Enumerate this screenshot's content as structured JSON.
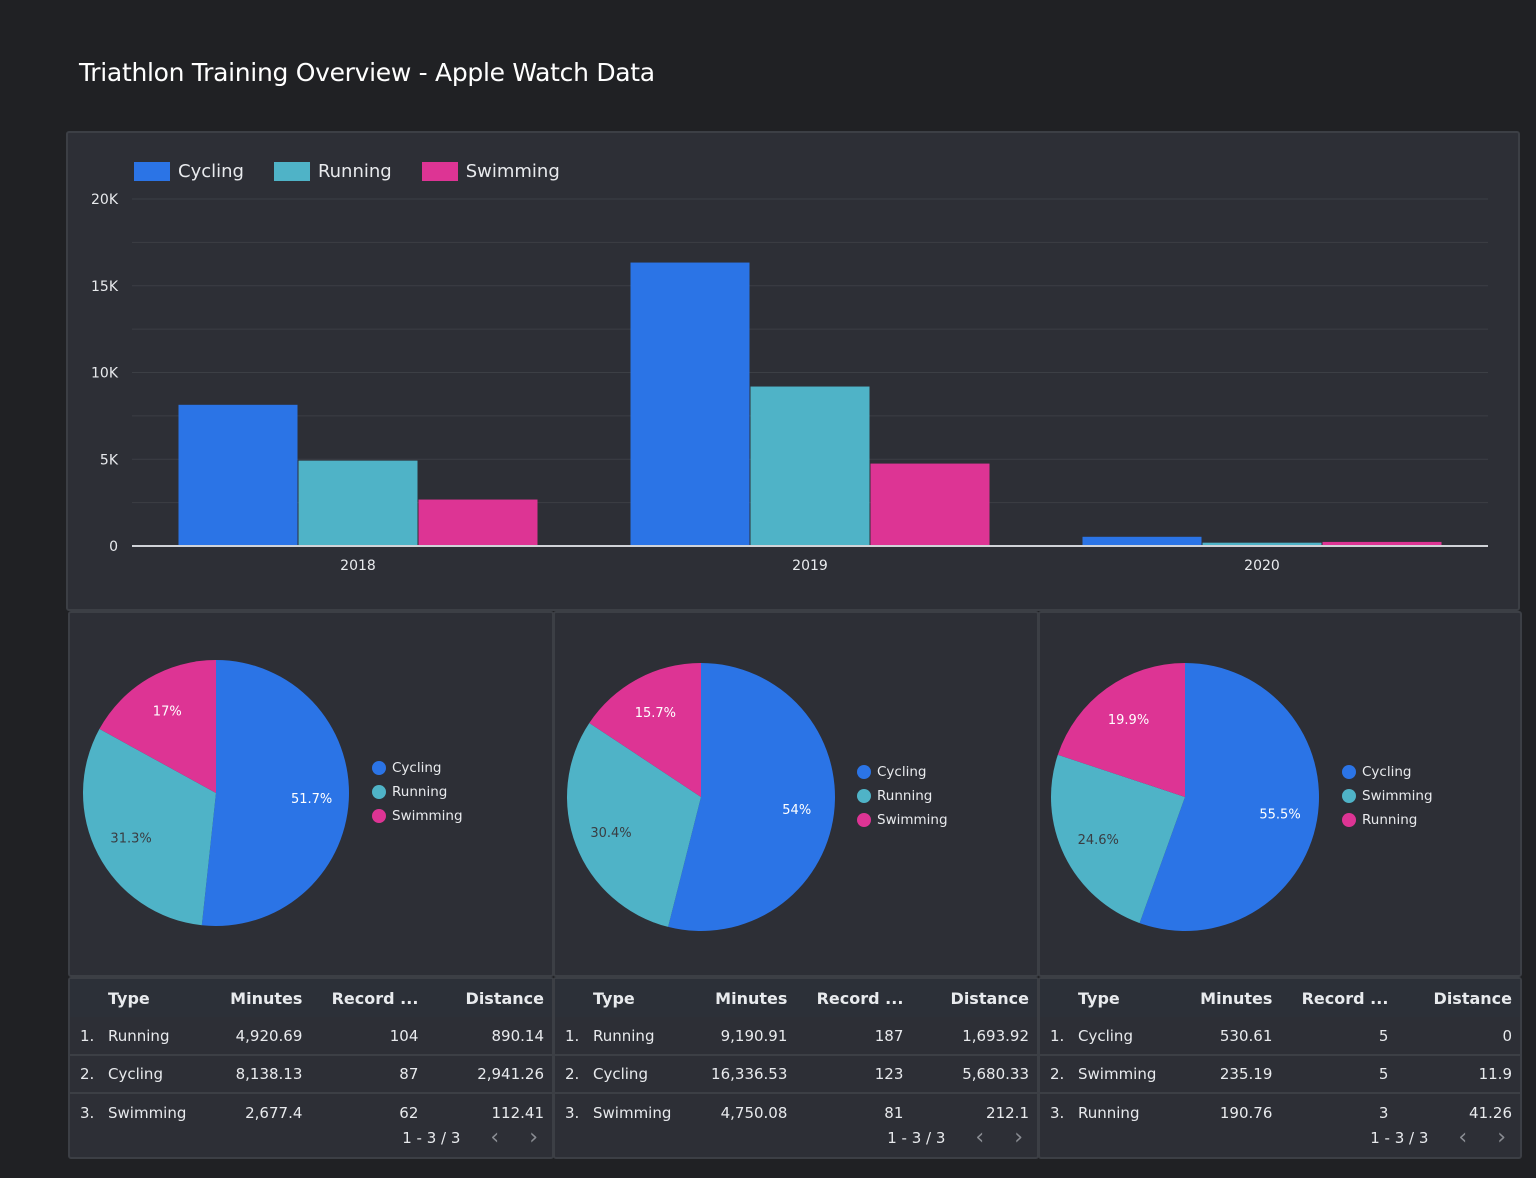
{
  "page": {
    "title": "Triathlon Training Overview - Apple Watch Data"
  },
  "colors": {
    "cycling": "#2b74e6",
    "running": "#4fb3c7",
    "swimming": "#dd3494",
    "pie_pos2": "#4fb3c7",
    "pie_pos3": "#dd3494"
  },
  "chart_data": [
    {
      "type": "bar",
      "title": "",
      "categories": [
        "2018",
        "2019",
        "2020"
      ],
      "series": [
        {
          "name": "Cycling",
          "color": "#2b74e6",
          "values": [
            8138.13,
            16336.53,
            530.61
          ]
        },
        {
          "name": "Running",
          "color": "#4fb3c7",
          "values": [
            4920.69,
            9190.91,
            190.76
          ]
        },
        {
          "name": "Swimming",
          "color": "#dd3494",
          "values": [
            2677.4,
            4750.08,
            235.19
          ]
        }
      ],
      "yticks": [
        "0",
        "5K",
        "10K",
        "15K",
        "20K"
      ],
      "ylim": [
        0,
        20000
      ],
      "grid": true,
      "legend": "top-left",
      "xlabel": "",
      "ylabel": ""
    },
    {
      "type": "pie",
      "slices": [
        {
          "name": "Cycling",
          "value": 51.7,
          "label": "51.7%",
          "color": "#2b74e6"
        },
        {
          "name": "Running",
          "value": 31.3,
          "label": "31.3%",
          "color": "#4fb3c7"
        },
        {
          "name": "Swimming",
          "value": 17.0,
          "label": "17%",
          "color": "#dd3494"
        }
      ],
      "legend": "right"
    },
    {
      "type": "pie",
      "slices": [
        {
          "name": "Cycling",
          "value": 54.0,
          "label": "54%",
          "color": "#2b74e6"
        },
        {
          "name": "Running",
          "value": 30.4,
          "label": "30.4%",
          "color": "#4fb3c7"
        },
        {
          "name": "Swimming",
          "value": 15.7,
          "label": "15.7%",
          "color": "#dd3494"
        }
      ],
      "legend": "right"
    },
    {
      "type": "pie",
      "slices": [
        {
          "name": "Cycling",
          "value": 55.5,
          "label": "55.5%",
          "color": "#2b74e6"
        },
        {
          "name": "Swimming",
          "value": 24.6,
          "label": "24.6%",
          "color": "#4fb3c7"
        },
        {
          "name": "Running",
          "value": 19.9,
          "label": "19.9%",
          "color": "#dd3494"
        }
      ],
      "legend": "right"
    }
  ],
  "tables": [
    {
      "headers": [
        "Type",
        "Minutes",
        "Record ...",
        "Distance"
      ],
      "rows": [
        {
          "idx": "1.",
          "type": "Running",
          "minutes": "4,920.69",
          "records": "104",
          "distance": "890.14"
        },
        {
          "idx": "2.",
          "type": "Cycling",
          "minutes": "8,138.13",
          "records": "87",
          "distance": "2,941.26"
        },
        {
          "idx": "3.",
          "type": "Swimming",
          "minutes": "2,677.4",
          "records": "62",
          "distance": "112.41"
        }
      ],
      "pagination": "1 - 3 / 3"
    },
    {
      "headers": [
        "Type",
        "Minutes",
        "Record ...",
        "Distance"
      ],
      "rows": [
        {
          "idx": "1.",
          "type": "Running",
          "minutes": "9,190.91",
          "records": "187",
          "distance": "1,693.92"
        },
        {
          "idx": "2.",
          "type": "Cycling",
          "minutes": "16,336.53",
          "records": "123",
          "distance": "5,680.33"
        },
        {
          "idx": "3.",
          "type": "Swimming",
          "minutes": "4,750.08",
          "records": "81",
          "distance": "212.1"
        }
      ],
      "pagination": "1 - 3 / 3"
    },
    {
      "headers": [
        "Type",
        "Minutes",
        "Record ...",
        "Distance"
      ],
      "rows": [
        {
          "idx": "1.",
          "type": "Cycling",
          "minutes": "530.61",
          "records": "5",
          "distance": "0"
        },
        {
          "idx": "2.",
          "type": "Swimming",
          "minutes": "235.19",
          "records": "5",
          "distance": "11.9"
        },
        {
          "idx": "3.",
          "type": "Running",
          "minutes": "190.76",
          "records": "3",
          "distance": "41.26"
        }
      ],
      "pagination": "1 - 3 / 3"
    }
  ],
  "icons": {
    "prev": "‹",
    "next": "›"
  }
}
